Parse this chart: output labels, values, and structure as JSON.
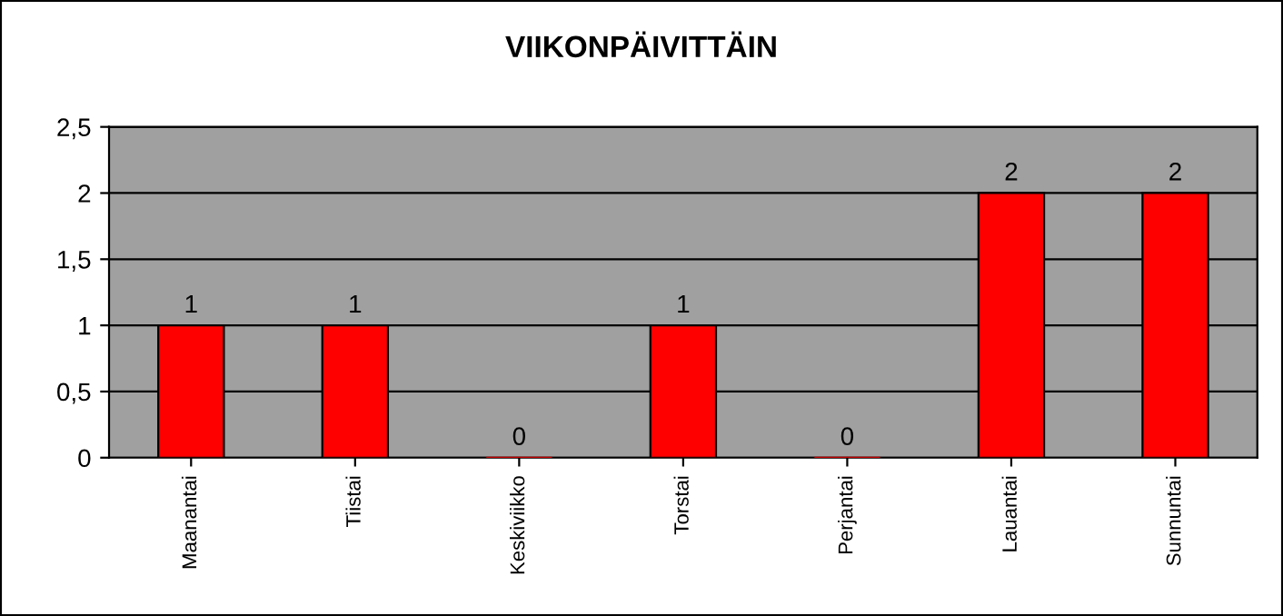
{
  "chart_data": {
    "type": "bar",
    "title": "VIIKONPÄIVITTÄIN",
    "categories": [
      "Maanantai",
      "Tiistai",
      "Keskiviikko",
      "Torstai",
      "Perjantai",
      "Lauantai",
      "Sunnuntai"
    ],
    "values": [
      1,
      1,
      0,
      1,
      0,
      2,
      2
    ],
    "color": "#ff0000",
    "ylim": [
      0,
      2.5
    ],
    "yticks": [
      0,
      {
        "value": 0.5,
        "label": "0,5"
      },
      1,
      {
        "value": 1.5,
        "label": "1,5"
      },
      2,
      {
        "value": 2.5,
        "label": "2,5"
      }
    ],
    "grid": "y",
    "data_labels": true
  }
}
